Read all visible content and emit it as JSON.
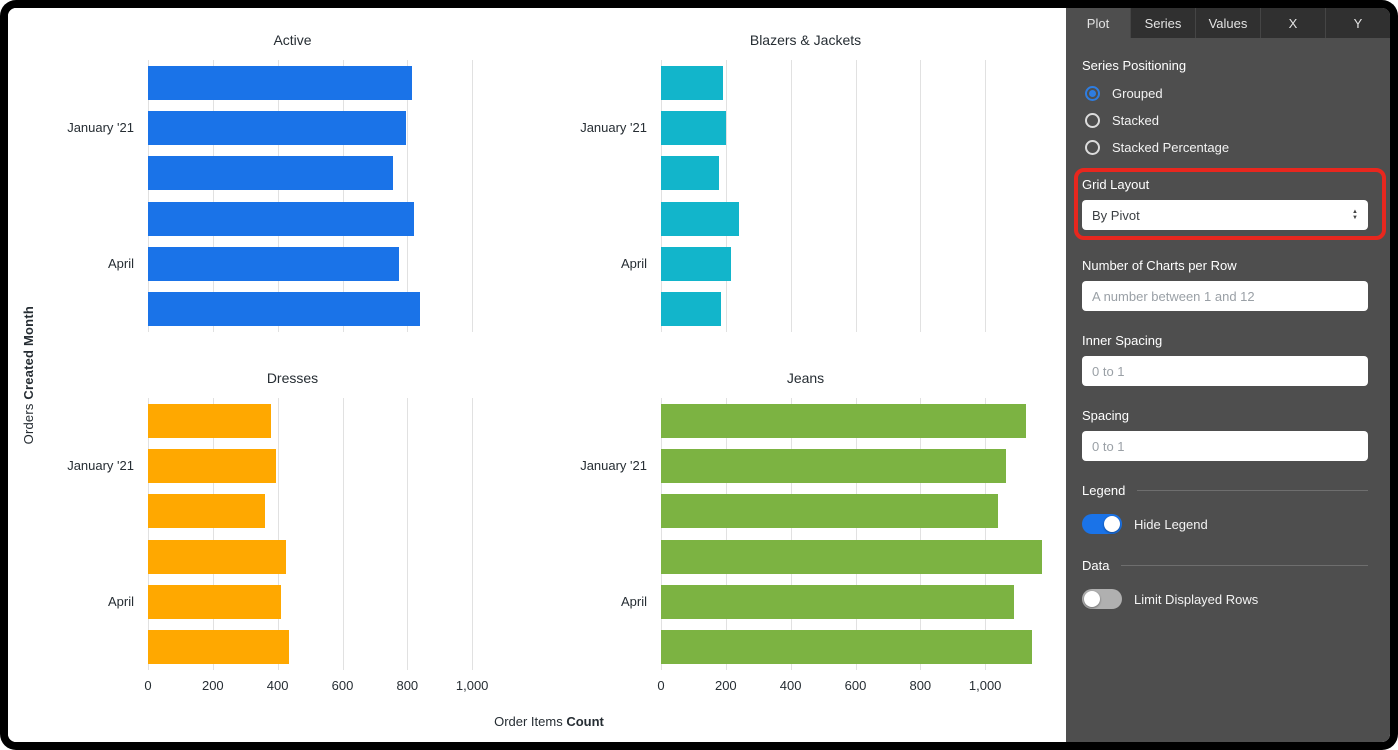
{
  "colors": {
    "accent_blue": "#1A73E8",
    "annotation_red": "#E8271E",
    "sidebar_bg": "#4E4E4E"
  },
  "sidebar": {
    "tabs": [
      {
        "label": "Plot",
        "active": true
      },
      {
        "label": "Series",
        "active": false
      },
      {
        "label": "Values",
        "active": false
      },
      {
        "label": "X",
        "active": false
      },
      {
        "label": "Y",
        "active": false
      }
    ],
    "series_positioning": {
      "label": "Series Positioning",
      "options": [
        {
          "label": "Grouped",
          "selected": true
        },
        {
          "label": "Stacked",
          "selected": false
        },
        {
          "label": "Stacked Percentage",
          "selected": false
        }
      ]
    },
    "grid_layout": {
      "label": "Grid Layout",
      "value": "By Pivot"
    },
    "charts_per_row": {
      "label": "Number of Charts per Row",
      "value": "",
      "placeholder": "A number between 1 and 12"
    },
    "inner_spacing": {
      "label": "Inner Spacing",
      "value": "",
      "placeholder": "0 to 1"
    },
    "spacing": {
      "label": "Spacing",
      "value": "",
      "placeholder": "0 to 1"
    },
    "legend_section": {
      "label": "Legend",
      "toggle_label": "Hide Legend",
      "toggle_on": true
    },
    "data_section": {
      "label": "Data",
      "toggle_label": "Limit Displayed Rows",
      "toggle_on": false
    }
  },
  "chart_data": {
    "type": "bar",
    "orientation": "horizontal",
    "grid": true,
    "legend": "hidden",
    "xlabel": {
      "view": "Order Items",
      "field": "Count"
    },
    "ylabel": {
      "view": "Orders",
      "field": "Created Month"
    },
    "xlim": [
      0,
      1200
    ],
    "grid_values": [
      0,
      200,
      400,
      600,
      800,
      1000
    ],
    "x_ticks": [
      "0",
      "200",
      "400",
      "600",
      "800",
      "1,000"
    ],
    "n_bars_per_chart": 6,
    "y_tick_labels": [
      {
        "index": 1,
        "label": "January '21"
      },
      {
        "index": 4,
        "label": "April"
      }
    ],
    "charts": [
      {
        "title": "Active",
        "color": "#1A73E8",
        "values": [
          815,
          795,
          755,
          820,
          775,
          840
        ]
      },
      {
        "title": "Blazers & Jackets",
        "color": "#12B5CB",
        "values": [
          190,
          200,
          180,
          240,
          215,
          185
        ]
      },
      {
        "title": "Dresses",
        "color": "#FFA800",
        "values": [
          380,
          395,
          360,
          425,
          410,
          435
        ]
      },
      {
        "title": "Jeans",
        "color": "#7CB342",
        "values": [
          1125,
          1065,
          1040,
          1175,
          1090,
          1145
        ]
      }
    ]
  }
}
